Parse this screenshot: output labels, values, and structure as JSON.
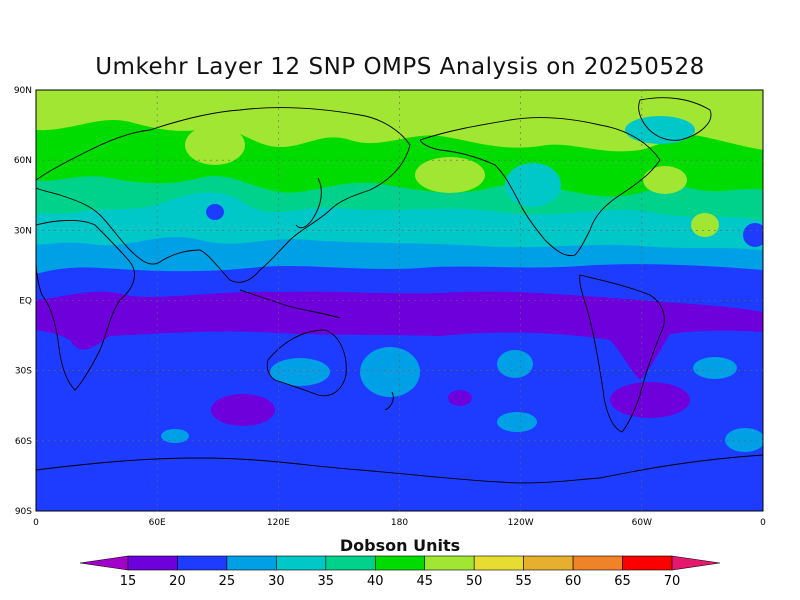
{
  "title": "Umkehr Layer 12 SNP OMPS Analysis on 20250528",
  "lat_labels": [
    "90N",
    "60N",
    "30N",
    "EQ",
    "30S",
    "60S",
    "90S"
  ],
  "lon_labels": [
    "0",
    "60E",
    "120E",
    "180",
    "120W",
    "60W",
    "0"
  ],
  "colorbar": {
    "title": "Dobson Units",
    "tick_labels": [
      "15",
      "20",
      "25",
      "30",
      "35",
      "40",
      "45",
      "50",
      "55",
      "60",
      "65",
      "70"
    ],
    "colors": [
      "#a000c8",
      "#6e00dc",
      "#1e3cff",
      "#00a0e6",
      "#00c8c8",
      "#00d28c",
      "#00dc00",
      "#a0e632",
      "#e6dc32",
      "#e6af2d",
      "#f08228",
      "#fa0000",
      "#e6186e"
    ]
  }
}
